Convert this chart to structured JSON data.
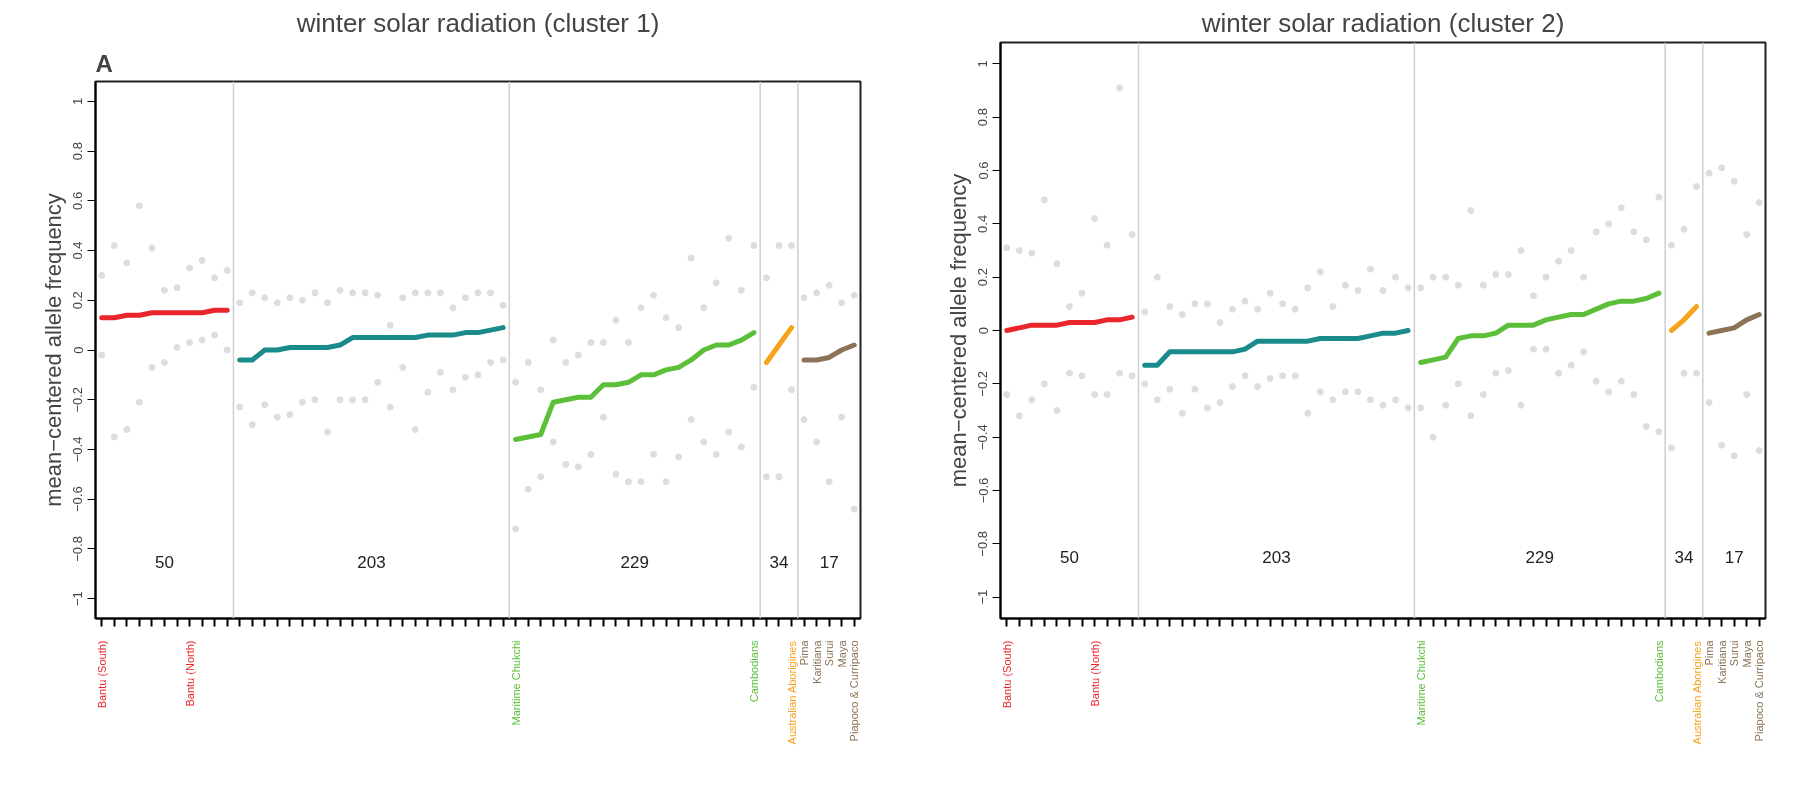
{
  "chart_data": [
    {
      "type": "line",
      "title": "winter solar radiation (cluster 1)",
      "ylabel": "mean−centered allele frequency",
      "ylim": [
        -1.08,
        1.08
      ],
      "yticks": [
        {
          "value": -1,
          "label": "−1"
        },
        {
          "value": -0.8,
          "label": "−0.8"
        },
        {
          "value": -0.6,
          "label": "−0.6"
        },
        {
          "value": -0.4,
          "label": "−0.4"
        },
        {
          "value": -0.2,
          "label": "−0.2"
        },
        0,
        0.2,
        0.4,
        0.6,
        0.8,
        1
      ],
      "annotations": [
        "50",
        "203",
        "229",
        "34",
        "17",
        "A"
      ],
      "categories": [
        "Bantu (South)",
        null,
        null,
        null,
        null,
        null,
        null,
        "Bantu (North)",
        null,
        null,
        null,
        null,
        null,
        null,
        null,
        null,
        null,
        null,
        null,
        null,
        null,
        null,
        null,
        null,
        null,
        null,
        null,
        null,
        null,
        null,
        null,
        null,
        null,
        "Maritime Chukchi",
        null,
        null,
        null,
        null,
        null,
        null,
        null,
        null,
        null,
        null,
        null,
        null,
        null,
        null,
        null,
        null,
        null,
        null,
        "Cambodians",
        null,
        null,
        "Australian Aborigines",
        "Pima",
        "Karitiana",
        "Surui",
        "Maya",
        "Piapoco & Curripaco"
      ],
      "series": [
        {
          "type": "scatter",
          "color": "#dcdde0",
          "values": [
            0.3,
            0.42,
            0.35,
            0.58,
            0.41,
            0.24,
            0.25,
            0.33,
            0.36,
            0.29,
            0.32,
            0.19,
            0.23,
            0.21,
            0.19,
            0.21,
            0.2,
            0.23,
            0.19,
            0.24,
            0.23,
            0.23,
            0.22,
            0.1,
            0.21,
            0.23,
            0.23,
            0.23,
            0.17,
            0.21,
            0.23,
            0.23,
            0.18,
            -0.13,
            -0.05,
            -0.16,
            0.04,
            -0.05,
            -0.02,
            0.03,
            0.03,
            0.12,
            0.03,
            0.17,
            0.22,
            0.13,
            0.09,
            0.37,
            0.17,
            0.27,
            0.45,
            0.24,
            0.42,
            0.29,
            0.42,
            0.42,
            0.21,
            0.23,
            0.26,
            0.19,
            0.22
          ]
        },
        {
          "type": "scatter",
          "color": "#dcdde0",
          "values": [
            -0.02,
            -0.35,
            -0.32,
            -0.21,
            -0.07,
            -0.05,
            0.01,
            0.03,
            0.04,
            0.06,
            0.0,
            -0.23,
            -0.3,
            -0.22,
            -0.27,
            -0.26,
            -0.21,
            -0.2,
            -0.33,
            -0.2,
            -0.2,
            -0.2,
            -0.13,
            -0.23,
            -0.07,
            -0.32,
            -0.17,
            -0.09,
            -0.16,
            -0.11,
            -0.1,
            -0.05,
            -0.04,
            -0.72,
            -0.56,
            -0.51,
            -0.37,
            -0.46,
            -0.47,
            -0.42,
            -0.27,
            -0.5,
            -0.53,
            -0.53,
            -0.42,
            -0.53,
            -0.43,
            -0.28,
            -0.37,
            -0.42,
            -0.33,
            -0.39,
            -0.15,
            -0.51,
            -0.51,
            -0.16,
            -0.28,
            -0.37,
            -0.53,
            -0.27,
            -0.64
          ]
        },
        {
          "color": "#e8262b",
          "values": [
            0.13,
            0.13,
            0.14,
            0.14,
            0.15,
            0.15,
            0.15,
            0.15,
            0.15,
            0.16,
            0.16,
            null,
            null,
            null,
            null,
            null,
            null,
            null,
            null,
            null,
            null,
            null,
            null,
            null,
            null,
            null,
            null,
            null,
            null,
            null,
            null,
            null,
            null,
            null,
            null,
            null,
            null,
            null,
            null,
            null,
            null,
            null,
            null,
            null,
            null,
            null,
            null,
            null,
            null,
            null,
            null,
            null,
            null,
            null,
            null,
            null,
            null,
            null,
            null,
            null,
            null
          ]
        },
        {
          "color": "#1b8a8a",
          "values": [
            null,
            null,
            null,
            null,
            null,
            null,
            null,
            null,
            null,
            null,
            null,
            -0.04,
            -0.04,
            0.0,
            0.0,
            0.01,
            0.01,
            0.01,
            0.01,
            0.02,
            0.05,
            0.05,
            0.05,
            0.05,
            0.05,
            0.05,
            0.06,
            0.06,
            0.06,
            0.07,
            0.07,
            0.08,
            0.09,
            null,
            null,
            null,
            null,
            null,
            null,
            null,
            null,
            null,
            null,
            null,
            null,
            null,
            null,
            null,
            null,
            null,
            null,
            null,
            null,
            null,
            null,
            null,
            null,
            null,
            null,
            null,
            null
          ]
        },
        {
          "color": "#5bbf3a",
          "values": [
            null,
            null,
            null,
            null,
            null,
            null,
            null,
            null,
            null,
            null,
            null,
            null,
            null,
            null,
            null,
            null,
            null,
            null,
            null,
            null,
            null,
            null,
            null,
            null,
            null,
            null,
            null,
            null,
            null,
            null,
            null,
            null,
            null,
            -0.36,
            -0.35,
            -0.34,
            -0.21,
            -0.2,
            -0.19,
            -0.19,
            -0.14,
            -0.14,
            -0.13,
            -0.1,
            -0.1,
            -0.08,
            -0.07,
            -0.04,
            0.0,
            0.02,
            0.02,
            0.04,
            0.07,
            null,
            null,
            null,
            null,
            null,
            null,
            null,
            null
          ]
        },
        {
          "color": "#f6a21d",
          "values": [
            null,
            null,
            null,
            null,
            null,
            null,
            null,
            null,
            null,
            null,
            null,
            null,
            null,
            null,
            null,
            null,
            null,
            null,
            null,
            null,
            null,
            null,
            null,
            null,
            null,
            null,
            null,
            null,
            null,
            null,
            null,
            null,
            null,
            null,
            null,
            null,
            null,
            null,
            null,
            null,
            null,
            null,
            null,
            null,
            null,
            null,
            null,
            null,
            null,
            null,
            null,
            null,
            null,
            -0.05,
            0.02,
            0.09,
            null,
            null,
            null,
            null,
            null
          ]
        },
        {
          "color": "#8c7356",
          "values": [
            null,
            null,
            null,
            null,
            null,
            null,
            null,
            null,
            null,
            null,
            null,
            null,
            null,
            null,
            null,
            null,
            null,
            null,
            null,
            null,
            null,
            null,
            null,
            null,
            null,
            null,
            null,
            null,
            null,
            null,
            null,
            null,
            null,
            null,
            null,
            null,
            null,
            null,
            null,
            null,
            null,
            null,
            null,
            null,
            null,
            null,
            null,
            null,
            null,
            null,
            null,
            null,
            null,
            null,
            null,
            null,
            -0.04,
            -0.04,
            -0.03,
            0.0,
            0.02
          ]
        }
      ]
    },
    {
      "type": "line",
      "title": "winter solar radiation (cluster 2)",
      "ylabel": "mean−centered allele frequency",
      "ylim": [
        -1.08,
        1.08
      ],
      "yticks": [
        {
          "value": -1,
          "label": "−1"
        },
        {
          "value": -0.8,
          "label": "−0.8"
        },
        {
          "value": -0.6,
          "label": "−0.6"
        },
        {
          "value": -0.4,
          "label": "−0.4"
        },
        {
          "value": -0.2,
          "label": "−0.2"
        },
        0,
        0.2,
        0.4,
        0.6,
        0.8,
        1
      ],
      "annotations": [
        "50",
        "203",
        "229",
        "34",
        "17"
      ],
      "categories": [
        "Bantu (South)",
        null,
        null,
        null,
        null,
        null,
        null,
        "Bantu (North)",
        null,
        null,
        null,
        null,
        null,
        null,
        null,
        null,
        null,
        null,
        null,
        null,
        null,
        null,
        null,
        null,
        null,
        null,
        null,
        null,
        null,
        null,
        null,
        null,
        null,
        "Maritime Chukchi",
        null,
        null,
        null,
        null,
        null,
        null,
        null,
        null,
        null,
        null,
        null,
        null,
        null,
        null,
        null,
        null,
        null,
        null,
        "Cambodians",
        null,
        null,
        "Australian Aborigines",
        "Pima",
        "Karitiana",
        "Surui",
        "Maya",
        "Piapoco & Curripaco"
      ],
      "series": [
        {
          "type": "scatter",
          "color": "#dcdde0",
          "values": [
            0.31,
            0.3,
            0.29,
            0.49,
            0.25,
            0.09,
            0.14,
            0.42,
            0.32,
            0.91,
            0.36,
            0.07,
            0.2,
            0.09,
            0.06,
            0.1,
            0.1,
            0.03,
            0.08,
            0.11,
            0.08,
            0.14,
            0.1,
            0.08,
            0.16,
            0.22,
            0.09,
            0.17,
            0.15,
            0.23,
            0.15,
            0.2,
            0.16,
            0.16,
            0.2,
            0.2,
            0.17,
            0.45,
            0.17,
            0.21,
            0.21,
            0.3,
            0.13,
            0.2,
            0.26,
            0.3,
            0.2,
            0.37,
            0.4,
            0.46,
            0.37,
            0.34,
            0.5,
            0.32,
            0.38,
            0.54,
            0.59,
            0.61,
            0.56,
            0.36,
            0.48
          ]
        },
        {
          "type": "scatter",
          "color": "#dcdde0",
          "values": [
            -0.24,
            -0.32,
            -0.26,
            -0.2,
            -0.3,
            -0.16,
            -0.17,
            -0.24,
            -0.24,
            -0.16,
            -0.17,
            -0.2,
            -0.26,
            -0.22,
            -0.31,
            -0.22,
            -0.29,
            -0.27,
            -0.21,
            -0.17,
            -0.21,
            -0.18,
            -0.17,
            -0.17,
            -0.31,
            -0.23,
            -0.26,
            -0.23,
            -0.23,
            -0.26,
            -0.28,
            -0.26,
            -0.29,
            -0.29,
            -0.4,
            -0.28,
            -0.2,
            -0.32,
            -0.24,
            -0.16,
            -0.15,
            -0.28,
            -0.07,
            -0.07,
            -0.16,
            -0.13,
            -0.08,
            -0.19,
            -0.23,
            -0.19,
            -0.24,
            -0.36,
            -0.38,
            -0.44,
            -0.16,
            -0.16,
            -0.27,
            -0.43,
            -0.47,
            -0.24,
            -0.45
          ]
        },
        {
          "color": "#e8262b",
          "values": [
            0.0,
            0.01,
            0.02,
            0.02,
            0.02,
            0.03,
            0.03,
            0.03,
            0.04,
            0.04,
            0.05,
            null,
            null,
            null,
            null,
            null,
            null,
            null,
            null,
            null,
            null,
            null,
            null,
            null,
            null,
            null,
            null,
            null,
            null,
            null,
            null,
            null,
            null,
            null,
            null,
            null,
            null,
            null,
            null,
            null,
            null,
            null,
            null,
            null,
            null,
            null,
            null,
            null,
            null,
            null,
            null,
            null,
            null,
            null,
            null,
            null,
            null,
            null,
            null,
            null,
            null
          ]
        },
        {
          "color": "#1b8a8a",
          "values": [
            null,
            null,
            null,
            null,
            null,
            null,
            null,
            null,
            null,
            null,
            null,
            -0.13,
            -0.13,
            -0.08,
            -0.08,
            -0.08,
            -0.08,
            -0.08,
            -0.08,
            -0.07,
            -0.04,
            -0.04,
            -0.04,
            -0.04,
            -0.04,
            -0.03,
            -0.03,
            -0.03,
            -0.03,
            -0.02,
            -0.01,
            -0.01,
            0.0,
            null,
            null,
            null,
            null,
            null,
            null,
            null,
            null,
            null,
            null,
            null,
            null,
            null,
            null,
            null,
            null,
            null,
            null,
            null,
            null,
            null,
            null,
            null,
            null,
            null,
            null,
            null,
            null
          ]
        },
        {
          "color": "#5bbf3a",
          "values": [
            null,
            null,
            null,
            null,
            null,
            null,
            null,
            null,
            null,
            null,
            null,
            null,
            null,
            null,
            null,
            null,
            null,
            null,
            null,
            null,
            null,
            null,
            null,
            null,
            null,
            null,
            null,
            null,
            null,
            null,
            null,
            null,
            null,
            -0.12,
            -0.11,
            -0.1,
            -0.03,
            -0.02,
            -0.02,
            -0.01,
            0.02,
            0.02,
            0.02,
            0.04,
            0.05,
            0.06,
            0.06,
            0.08,
            0.1,
            0.11,
            0.11,
            0.12,
            0.14,
            null,
            null,
            null,
            null,
            null,
            null,
            null,
            null
          ]
        },
        {
          "color": "#f6a21d",
          "values": [
            null,
            null,
            null,
            null,
            null,
            null,
            null,
            null,
            null,
            null,
            null,
            null,
            null,
            null,
            null,
            null,
            null,
            null,
            null,
            null,
            null,
            null,
            null,
            null,
            null,
            null,
            null,
            null,
            null,
            null,
            null,
            null,
            null,
            null,
            null,
            null,
            null,
            null,
            null,
            null,
            null,
            null,
            null,
            null,
            null,
            null,
            null,
            null,
            null,
            null,
            null,
            null,
            null,
            0.0,
            0.04,
            0.09,
            null,
            null,
            null,
            null,
            null
          ]
        },
        {
          "color": "#8c7356",
          "values": [
            null,
            null,
            null,
            null,
            null,
            null,
            null,
            null,
            null,
            null,
            null,
            null,
            null,
            null,
            null,
            null,
            null,
            null,
            null,
            null,
            null,
            null,
            null,
            null,
            null,
            null,
            null,
            null,
            null,
            null,
            null,
            null,
            null,
            null,
            null,
            null,
            null,
            null,
            null,
            null,
            null,
            null,
            null,
            null,
            null,
            null,
            null,
            null,
            null,
            null,
            null,
            null,
            null,
            null,
            null,
            null,
            -0.01,
            0.0,
            0.01,
            0.04,
            0.06
          ]
        }
      ]
    }
  ]
}
